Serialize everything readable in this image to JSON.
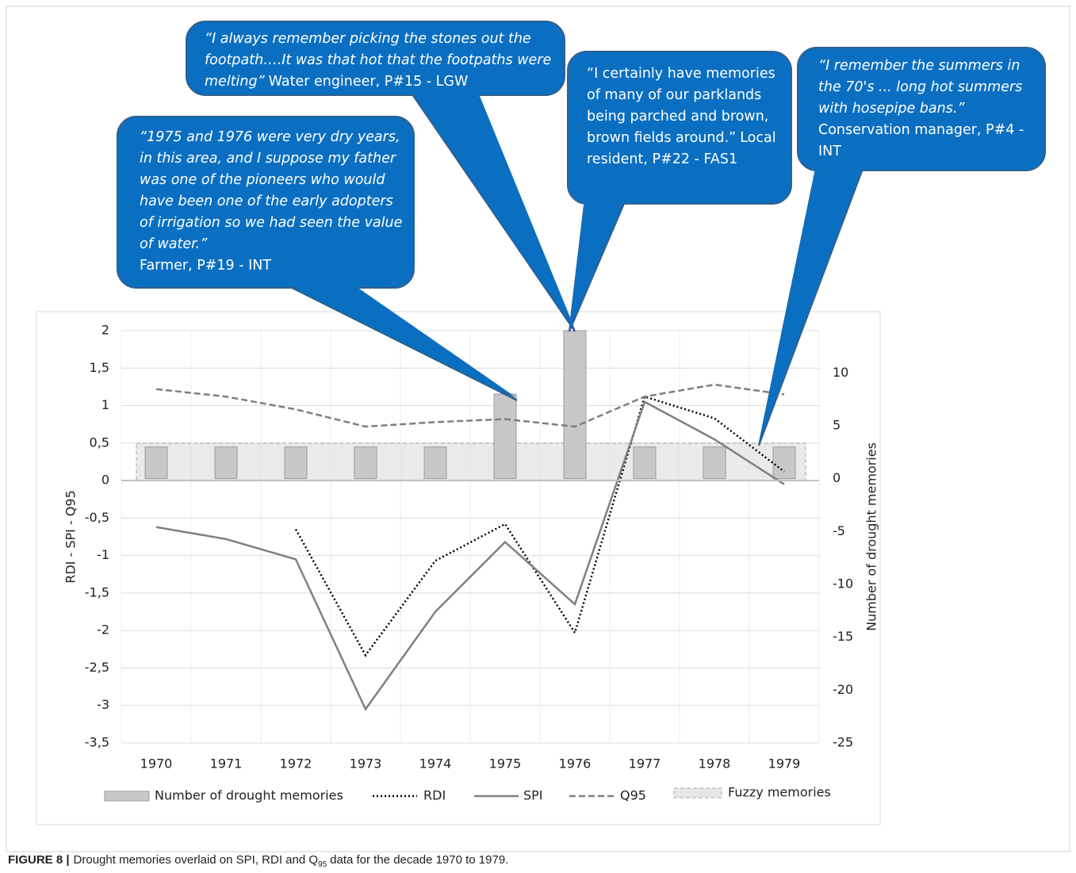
{
  "chart_data": {
    "type": "combo",
    "categories": [
      "1970",
      "1971",
      "1972",
      "1973",
      "1974",
      "1975",
      "1976",
      "1977",
      "1978",
      "1979"
    ],
    "ylabel": "RDI - SPI - Q95",
    "y2label": "Number of drought memories",
    "ylim": [
      -3.5,
      2
    ],
    "yticks": [
      {
        "value": -3.5,
        "label": "-3,5"
      },
      -3,
      {
        "value": -2.5,
        "label": "-2,5"
      },
      -2,
      {
        "value": -1.5,
        "label": "-1,5"
      },
      -1,
      {
        "value": -0.5,
        "label": "-0,5"
      },
      0,
      {
        "value": 0.5,
        "label": "0,5"
      },
      1,
      {
        "value": 1.5,
        "label": "1,5"
      },
      2
    ],
    "y2lim": [
      -25,
      14
    ],
    "y2ticks": [
      -25,
      -20,
      -15,
      -10,
      -5,
      0,
      5,
      10
    ],
    "grid": true,
    "series": [
      {
        "name": "Number of drought memories",
        "type": "bar",
        "axis": "y2",
        "color": "#c8c8c8",
        "values": [
          3,
          3,
          3,
          3,
          3,
          8,
          14,
          3,
          3,
          3
        ]
      },
      {
        "name": "RDI",
        "type": "line",
        "dash": "dotted",
        "color": "#000000",
        "values": [
          null,
          null,
          -0.65,
          -2.33,
          -1.07,
          -0.58,
          -2.03,
          1.12,
          0.83,
          0.12
        ]
      },
      {
        "name": "SPI",
        "type": "line",
        "dash": "solid",
        "color": "#808080",
        "values": [
          -0.62,
          -0.78,
          -1.05,
          -3.05,
          -1.75,
          -0.82,
          -1.65,
          1.05,
          0.55,
          -0.05
        ]
      },
      {
        "name": "Q95",
        "type": "line",
        "dash": "dashed",
        "color": "#7f7f7f",
        "values": [
          1.22,
          1.12,
          0.95,
          0.72,
          0.78,
          0.82,
          0.72,
          1.12,
          1.28,
          1.15
        ]
      }
    ],
    "band": {
      "name": "Fuzzy memories",
      "value": 0.5
    },
    "annotations": [
      {
        "quote": "“1975 and 1976 were very dry years, in this area, and I suppose my father was one of the pioneers who would have been one of the early adopters of irrigation so we had seen the value of water.”",
        "source": "Farmer, P#19 - INT"
      },
      {
        "quote": "“I always remember picking the stones out the footpath….It was that hot that the footpaths were melting”",
        "source": "Water engineer, P#15 - LGW"
      },
      {
        "quote": "“I certainly have memories of many of our parklands being parched and brown, brown fields around.”",
        "source": "Local resident, P#22 - FAS1"
      },
      {
        "quote": "“I remember the summers in the 70's ... long hot summers with hosepipe bans.”",
        "source": "Conservation manager, P#4 - INT"
      }
    ]
  },
  "caption": {
    "label": "FIGURE 8 |",
    "text": "Drought memories overlaid on SPI, RDI and Q",
    "subscript": "95",
    "text_end": "data for the decade 1970 to 1979."
  }
}
